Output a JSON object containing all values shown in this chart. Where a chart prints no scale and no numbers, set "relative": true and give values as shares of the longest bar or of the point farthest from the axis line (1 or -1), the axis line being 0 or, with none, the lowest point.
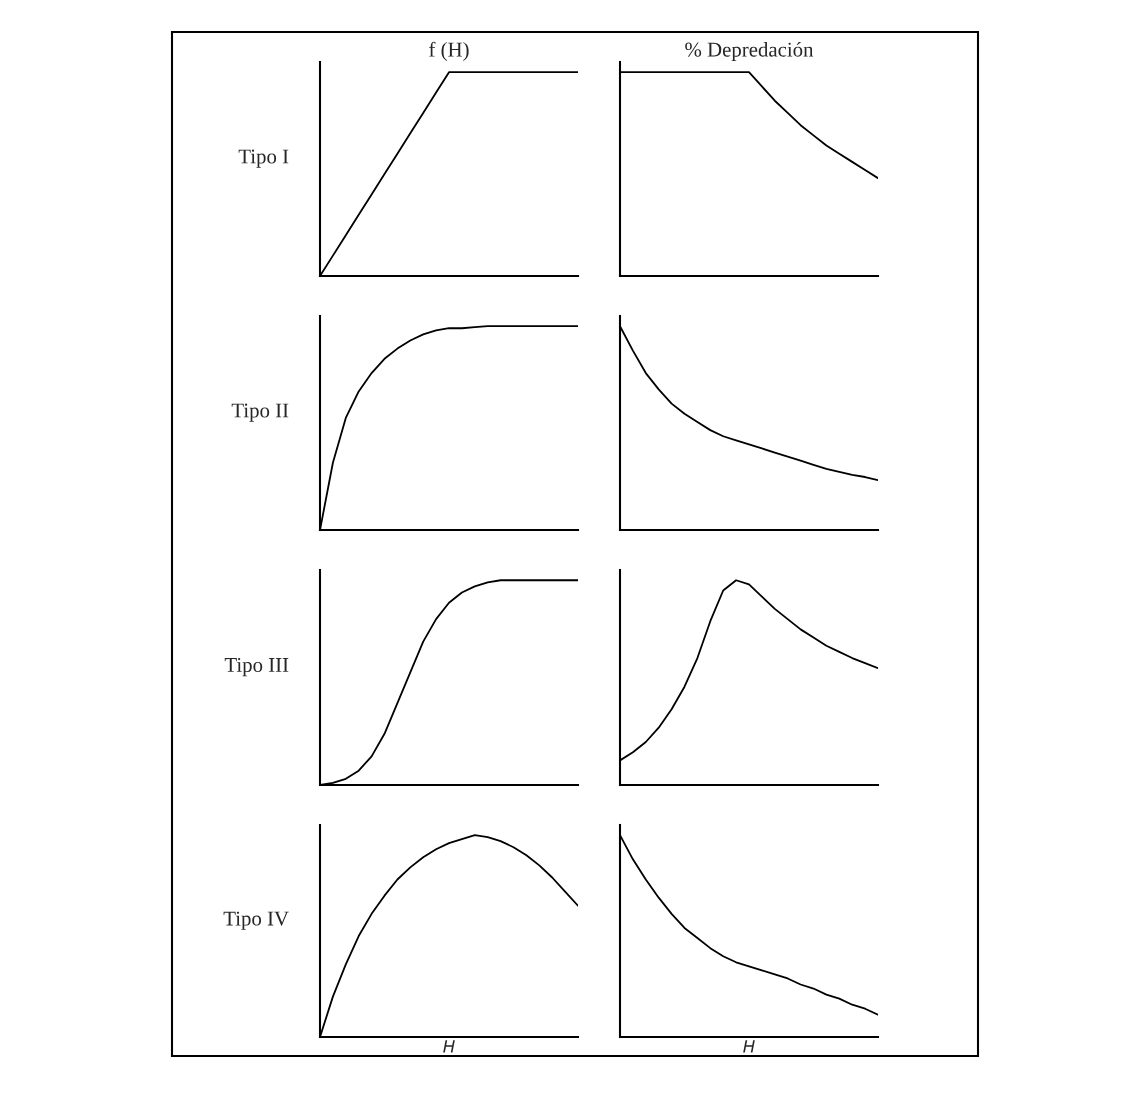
{
  "chart_data": [
    {
      "type": "line",
      "title": "f (H)",
      "ylabel": "Tipo I",
      "relative": true,
      "tick_labels": false,
      "categories": [
        null,
        null,
        null,
        null,
        null,
        null,
        null,
        null,
        null,
        null,
        null,
        null,
        null,
        null,
        null,
        null,
        null,
        null,
        null,
        null,
        null
      ],
      "series": [
        {
          "color": "#000000",
          "values": [
            0,
            0.1,
            0.2,
            0.3,
            0.4,
            0.5,
            0.6,
            0.7,
            0.8,
            0.9,
            1,
            1,
            1,
            1,
            1,
            1,
            1,
            1,
            1,
            1,
            1
          ]
        }
      ]
    },
    {
      "type": "line",
      "title": "% Depredación",
      "relative": true,
      "tick_labels": false,
      "categories": [
        null,
        null,
        null,
        null,
        null,
        null,
        null,
        null,
        null,
        null,
        null,
        null,
        null,
        null,
        null,
        null,
        null,
        null,
        null,
        null,
        null
      ],
      "series": [
        {
          "color": "#000000",
          "values": [
            1,
            1,
            1,
            1,
            1,
            1,
            1,
            1,
            1,
            1,
            1,
            0.93,
            0.86,
            0.8,
            0.74,
            0.69,
            0.64,
            0.6,
            0.56,
            0.52,
            0.48
          ]
        }
      ]
    },
    {
      "type": "line",
      "ylabel": "Tipo II",
      "relative": true,
      "tick_labels": false,
      "categories": [
        null,
        null,
        null,
        null,
        null,
        null,
        null,
        null,
        null,
        null,
        null,
        null,
        null,
        null,
        null,
        null,
        null,
        null,
        null,
        null,
        null
      ],
      "series": [
        {
          "color": "#000000",
          "values": [
            0,
            0.33,
            0.55,
            0.68,
            0.77,
            0.84,
            0.89,
            0.93,
            0.96,
            0.98,
            0.99,
            0.99,
            0.995,
            1,
            1,
            1,
            1,
            1,
            1,
            1,
            1
          ]
        }
      ]
    },
    {
      "type": "line",
      "relative": true,
      "tick_labels": false,
      "categories": [
        null,
        null,
        null,
        null,
        null,
        null,
        null,
        null,
        null,
        null,
        null,
        null,
        null,
        null,
        null,
        null,
        null,
        null,
        null,
        null,
        null
      ],
      "series": [
        {
          "color": "#000000",
          "values": [
            1,
            0.88,
            0.77,
            0.69,
            0.62,
            0.57,
            0.53,
            0.49,
            0.46,
            0.44,
            0.42,
            0.4,
            0.38,
            0.36,
            0.34,
            0.32,
            0.3,
            0.285,
            0.27,
            0.26,
            0.245
          ]
        }
      ]
    },
    {
      "type": "line",
      "ylabel": "Tipo III",
      "relative": true,
      "tick_labels": false,
      "categories": [
        null,
        null,
        null,
        null,
        null,
        null,
        null,
        null,
        null,
        null,
        null,
        null,
        null,
        null,
        null,
        null,
        null,
        null,
        null,
        null,
        null
      ],
      "series": [
        {
          "color": "#000000",
          "values": [
            0,
            0.01,
            0.03,
            0.07,
            0.14,
            0.25,
            0.4,
            0.55,
            0.7,
            0.81,
            0.89,
            0.94,
            0.97,
            0.99,
            1,
            1,
            1,
            1,
            1,
            1,
            1
          ]
        }
      ]
    },
    {
      "type": "line",
      "relative": true,
      "tick_labels": false,
      "categories": [
        null,
        null,
        null,
        null,
        null,
        null,
        null,
        null,
        null,
        null,
        null,
        null,
        null,
        null,
        null,
        null,
        null,
        null,
        null,
        null,
        null
      ],
      "series": [
        {
          "color": "#000000",
          "values": [
            0.12,
            0.16,
            0.21,
            0.28,
            0.37,
            0.48,
            0.62,
            0.8,
            0.95,
            1,
            0.98,
            0.92,
            0.86,
            0.81,
            0.76,
            0.72,
            0.68,
            0.65,
            0.62,
            0.595,
            0.57
          ]
        }
      ]
    },
    {
      "type": "line",
      "ylabel": "Tipo IV",
      "xlabel": "H",
      "relative": true,
      "tick_labels": false,
      "categories": [
        null,
        null,
        null,
        null,
        null,
        null,
        null,
        null,
        null,
        null,
        null,
        null,
        null,
        null,
        null,
        null,
        null,
        null,
        null,
        null,
        null
      ],
      "series": [
        {
          "color": "#000000",
          "values": [
            0,
            0.2,
            0.36,
            0.5,
            0.61,
            0.7,
            0.78,
            0.84,
            0.89,
            0.93,
            0.96,
            0.98,
            1,
            0.99,
            0.97,
            0.94,
            0.9,
            0.85,
            0.79,
            0.72,
            0.65
          ]
        }
      ]
    },
    {
      "type": "line",
      "xlabel": "H",
      "relative": true,
      "tick_labels": false,
      "categories": [
        null,
        null,
        null,
        null,
        null,
        null,
        null,
        null,
        null,
        null,
        null,
        null,
        null,
        null,
        null,
        null,
        null,
        null,
        null,
        null,
        null
      ],
      "series": [
        {
          "color": "#000000",
          "values": [
            1,
            0.88,
            0.78,
            0.69,
            0.61,
            0.54,
            0.49,
            0.44,
            0.4,
            0.37,
            0.35,
            0.33,
            0.31,
            0.29,
            0.26,
            0.24,
            0.21,
            0.19,
            0.16,
            0.14,
            0.11
          ]
        }
      ]
    }
  ]
}
